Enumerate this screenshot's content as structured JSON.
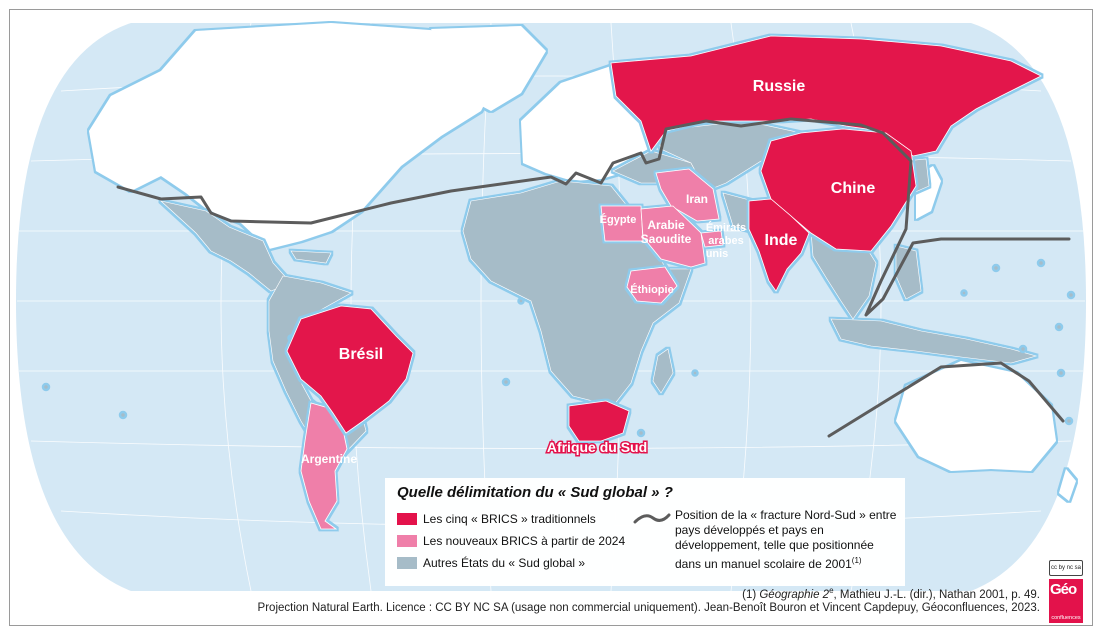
{
  "map": {
    "countries": {
      "russia": "Russie",
      "china": "Chine",
      "india": "Inde",
      "brazil": "Brésil",
      "south_africa": "Afrique du Sud",
      "iran": "Iran",
      "egypt": "Égypte",
      "saudi": "Arabie Saoudite",
      "uae": "Émirats arabes unis",
      "ethiopia": "Éthiopie",
      "argentina": "Argentine"
    },
    "colors": {
      "ocean": "#d4e8f5",
      "graticule": "#ffffff",
      "north": "#ffffff",
      "brics": "#e3124b",
      "new_brics": "#ef7fa9",
      "global_south": "#a6bcc8",
      "coast_glow": "#8ecbec",
      "ns_line": "#5c5c5c"
    }
  },
  "legend": {
    "title": "Quelle délimitation du « Sud global » ?",
    "items": [
      {
        "label": "Les cinq « BRICS » traditionnels",
        "color": "#e3124b"
      },
      {
        "label": "Les nouveaux BRICS à partir de 2024",
        "color": "#ef7fa9"
      },
      {
        "label": "Autres États du « Sud global »",
        "color": "#a6bcc8"
      }
    ],
    "line_label": "Position de la « fracture Nord-Sud » entre pays développés et pays en développement, telle que positionnée dans un manuel scolaire de 2001",
    "line_note": "(1)"
  },
  "footnote": {
    "prefix": "(1) ",
    "book": "Géographie 2",
    "sup": "e",
    "rest": ", Mathieu J.-L. (dir.), Nathan 2001, p. 49."
  },
  "credit": "Projection Natural Earth. Licence : CC BY NC SA (usage non commercial uniquement). Jean-Benoît Bouron et Vincent Capdepuy, Géoconfluences, 2023.",
  "logo": {
    "brand": "Géo",
    "sub": "confluences",
    "license": "cc by nc sa"
  }
}
